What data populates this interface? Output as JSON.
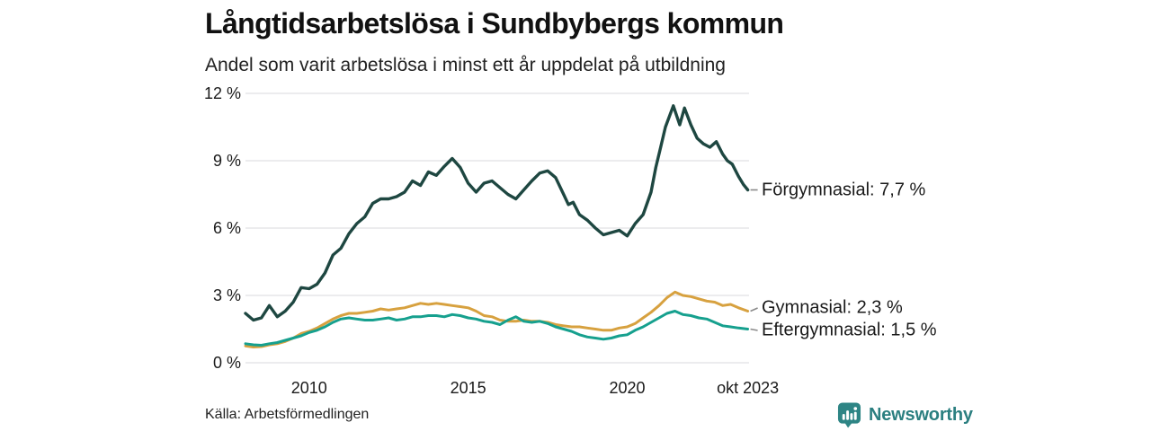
{
  "chart_data": {
    "type": "line",
    "title": "Långtidsarbetslösa i Sundbybergs kommun",
    "subtitle": "Andel som varit arbetslösa i minst ett år uppdelat på utbildning",
    "source": "Källa: Arbetsförmedlingen",
    "unit": "%",
    "xlim": [
      2008,
      2023.83
    ],
    "ylim": [
      0,
      12
    ],
    "grid": "horizontal-only",
    "legend_position": "end-of-line-labels",
    "gridline_color": "#e0e0e3",
    "leader_line_color": "#8a8a8a",
    "y_ticks": [
      {
        "v": 0,
        "label": "0 %"
      },
      {
        "v": 3,
        "label": "3 %"
      },
      {
        "v": 6,
        "label": "6 %"
      },
      {
        "v": 9,
        "label": "9 %"
      },
      {
        "v": 12,
        "label": "12 %"
      }
    ],
    "x_ticks": [
      {
        "v": 2010,
        "label": "2010"
      },
      {
        "v": 2015,
        "label": "2015"
      },
      {
        "v": 2020,
        "label": "2020"
      },
      {
        "v": 2023.79,
        "label": "okt 2023"
      }
    ],
    "series": [
      {
        "id": "forgymnasial",
        "name": "Förgymnasial",
        "end_label": "Förgymnasial: 7,7 %",
        "last_value_display": "7,7 %",
        "color": "#1e4741",
        "points": [
          [
            2008,
            2.2
          ],
          [
            2008.25,
            1.9
          ],
          [
            2008.5,
            2.0
          ],
          [
            2008.75,
            2.55
          ],
          [
            2009,
            2.05
          ],
          [
            2009.25,
            2.3
          ],
          [
            2009.5,
            2.7
          ],
          [
            2009.75,
            3.35
          ],
          [
            2010,
            3.3
          ],
          [
            2010.25,
            3.5
          ],
          [
            2010.5,
            4.0
          ],
          [
            2010.75,
            4.8
          ],
          [
            2011,
            5.1
          ],
          [
            2011.25,
            5.75
          ],
          [
            2011.5,
            6.2
          ],
          [
            2011.75,
            6.5
          ],
          [
            2012,
            7.1
          ],
          [
            2012.25,
            7.3
          ],
          [
            2012.5,
            7.3
          ],
          [
            2012.75,
            7.4
          ],
          [
            2013,
            7.6
          ],
          [
            2013.25,
            8.1
          ],
          [
            2013.5,
            7.9
          ],
          [
            2013.75,
            8.5
          ],
          [
            2014,
            8.35
          ],
          [
            2014.25,
            8.75
          ],
          [
            2014.5,
            9.1
          ],
          [
            2014.75,
            8.7
          ],
          [
            2015,
            8.0
          ],
          [
            2015.25,
            7.6
          ],
          [
            2015.5,
            8.0
          ],
          [
            2015.75,
            8.1
          ],
          [
            2016,
            7.8
          ],
          [
            2016.25,
            7.5
          ],
          [
            2016.5,
            7.3
          ],
          [
            2016.75,
            7.7
          ],
          [
            2017,
            8.1
          ],
          [
            2017.25,
            8.45
          ],
          [
            2017.5,
            8.55
          ],
          [
            2017.75,
            8.25
          ],
          [
            2018,
            7.5
          ],
          [
            2018.15,
            7.05
          ],
          [
            2018.3,
            7.15
          ],
          [
            2018.5,
            6.6
          ],
          [
            2018.75,
            6.35
          ],
          [
            2019,
            6.0
          ],
          [
            2019.25,
            5.7
          ],
          [
            2019.5,
            5.8
          ],
          [
            2019.75,
            5.9
          ],
          [
            2020,
            5.65
          ],
          [
            2020.25,
            6.2
          ],
          [
            2020.5,
            6.6
          ],
          [
            2020.75,
            7.6
          ],
          [
            2020.9,
            8.7
          ],
          [
            2021.05,
            9.6
          ],
          [
            2021.2,
            10.5
          ],
          [
            2021.45,
            11.45
          ],
          [
            2021.65,
            10.6
          ],
          [
            2021.8,
            11.35
          ],
          [
            2022,
            10.6
          ],
          [
            2022.2,
            10.0
          ],
          [
            2022.4,
            9.75
          ],
          [
            2022.6,
            9.6
          ],
          [
            2022.8,
            9.85
          ],
          [
            2023,
            9.3
          ],
          [
            2023.15,
            9.0
          ],
          [
            2023.3,
            8.85
          ],
          [
            2023.5,
            8.3
          ],
          [
            2023.65,
            7.95
          ],
          [
            2023.79,
            7.7
          ]
        ]
      },
      {
        "id": "gymnasial",
        "name": "Gymnasial",
        "end_label": "Gymnasial: 2,3 %",
        "last_value_display": "2,3 %",
        "color": "#d7a13f",
        "points": [
          [
            2008,
            0.75
          ],
          [
            2008.25,
            0.7
          ],
          [
            2008.5,
            0.72
          ],
          [
            2008.75,
            0.8
          ],
          [
            2009,
            0.85
          ],
          [
            2009.25,
            0.95
          ],
          [
            2009.5,
            1.1
          ],
          [
            2009.75,
            1.3
          ],
          [
            2010,
            1.4
          ],
          [
            2010.25,
            1.55
          ],
          [
            2010.5,
            1.75
          ],
          [
            2010.75,
            1.95
          ],
          [
            2011,
            2.1
          ],
          [
            2011.25,
            2.2
          ],
          [
            2011.5,
            2.2
          ],
          [
            2011.75,
            2.25
          ],
          [
            2012,
            2.3
          ],
          [
            2012.25,
            2.4
          ],
          [
            2012.5,
            2.35
          ],
          [
            2012.75,
            2.4
          ],
          [
            2013,
            2.45
          ],
          [
            2013.25,
            2.55
          ],
          [
            2013.5,
            2.65
          ],
          [
            2013.75,
            2.6
          ],
          [
            2014,
            2.65
          ],
          [
            2014.25,
            2.6
          ],
          [
            2014.5,
            2.55
          ],
          [
            2014.75,
            2.5
          ],
          [
            2015,
            2.45
          ],
          [
            2015.25,
            2.3
          ],
          [
            2015.5,
            2.1
          ],
          [
            2015.75,
            2.05
          ],
          [
            2016,
            1.9
          ],
          [
            2016.25,
            1.85
          ],
          [
            2016.5,
            1.85
          ],
          [
            2016.75,
            1.9
          ],
          [
            2017,
            1.85
          ],
          [
            2017.25,
            1.85
          ],
          [
            2017.5,
            1.8
          ],
          [
            2017.75,
            1.7
          ],
          [
            2018,
            1.65
          ],
          [
            2018.25,
            1.6
          ],
          [
            2018.5,
            1.6
          ],
          [
            2018.75,
            1.55
          ],
          [
            2019,
            1.5
          ],
          [
            2019.25,
            1.45
          ],
          [
            2019.5,
            1.45
          ],
          [
            2019.75,
            1.55
          ],
          [
            2020,
            1.6
          ],
          [
            2020.25,
            1.75
          ],
          [
            2020.5,
            2.0
          ],
          [
            2020.75,
            2.25
          ],
          [
            2021,
            2.55
          ],
          [
            2021.25,
            2.9
          ],
          [
            2021.5,
            3.15
          ],
          [
            2021.75,
            3.0
          ],
          [
            2022,
            2.95
          ],
          [
            2022.25,
            2.85
          ],
          [
            2022.5,
            2.75
          ],
          [
            2022.75,
            2.7
          ],
          [
            2023,
            2.55
          ],
          [
            2023.25,
            2.6
          ],
          [
            2023.5,
            2.45
          ],
          [
            2023.79,
            2.3
          ]
        ]
      },
      {
        "id": "eftergymnasial",
        "name": "Eftergymnasial",
        "end_label": "Eftergymnasial: 1,5 %",
        "last_value_display": "1,5 %",
        "color": "#16a08e",
        "points": [
          [
            2008,
            0.85
          ],
          [
            2008.25,
            0.8
          ],
          [
            2008.5,
            0.78
          ],
          [
            2008.75,
            0.85
          ],
          [
            2009,
            0.9
          ],
          [
            2009.25,
            1.0
          ],
          [
            2009.5,
            1.1
          ],
          [
            2009.75,
            1.2
          ],
          [
            2010,
            1.35
          ],
          [
            2010.25,
            1.45
          ],
          [
            2010.5,
            1.6
          ],
          [
            2010.75,
            1.8
          ],
          [
            2011,
            1.95
          ],
          [
            2011.25,
            2.0
          ],
          [
            2011.5,
            1.95
          ],
          [
            2011.75,
            1.9
          ],
          [
            2012,
            1.9
          ],
          [
            2012.25,
            1.95
          ],
          [
            2012.5,
            2.0
          ],
          [
            2012.75,
            1.9
          ],
          [
            2013,
            1.95
          ],
          [
            2013.25,
            2.05
          ],
          [
            2013.5,
            2.05
          ],
          [
            2013.75,
            2.1
          ],
          [
            2014,
            2.1
          ],
          [
            2014.25,
            2.05
          ],
          [
            2014.5,
            2.15
          ],
          [
            2014.75,
            2.1
          ],
          [
            2015,
            2.0
          ],
          [
            2015.25,
            1.95
          ],
          [
            2015.5,
            1.85
          ],
          [
            2015.75,
            1.8
          ],
          [
            2016,
            1.7
          ],
          [
            2016.25,
            1.9
          ],
          [
            2016.5,
            2.05
          ],
          [
            2016.75,
            1.85
          ],
          [
            2017,
            1.8
          ],
          [
            2017.25,
            1.85
          ],
          [
            2017.5,
            1.75
          ],
          [
            2017.75,
            1.6
          ],
          [
            2018,
            1.5
          ],
          [
            2018.25,
            1.4
          ],
          [
            2018.5,
            1.25
          ],
          [
            2018.75,
            1.15
          ],
          [
            2019,
            1.1
          ],
          [
            2019.25,
            1.05
          ],
          [
            2019.5,
            1.1
          ],
          [
            2019.75,
            1.2
          ],
          [
            2020,
            1.25
          ],
          [
            2020.25,
            1.45
          ],
          [
            2020.5,
            1.6
          ],
          [
            2020.75,
            1.8
          ],
          [
            2021,
            2.0
          ],
          [
            2021.25,
            2.2
          ],
          [
            2021.5,
            2.3
          ],
          [
            2021.75,
            2.15
          ],
          [
            2022,
            2.1
          ],
          [
            2022.25,
            2.0
          ],
          [
            2022.5,
            1.95
          ],
          [
            2022.75,
            1.8
          ],
          [
            2023,
            1.65
          ],
          [
            2023.25,
            1.6
          ],
          [
            2023.5,
            1.55
          ],
          [
            2023.79,
            1.5
          ]
        ]
      }
    ]
  },
  "branding": {
    "wordmark": "Newsworthy",
    "logo_icon": "newsworthy-speech-bubble-bar-chart",
    "color": "#2b7f80"
  }
}
